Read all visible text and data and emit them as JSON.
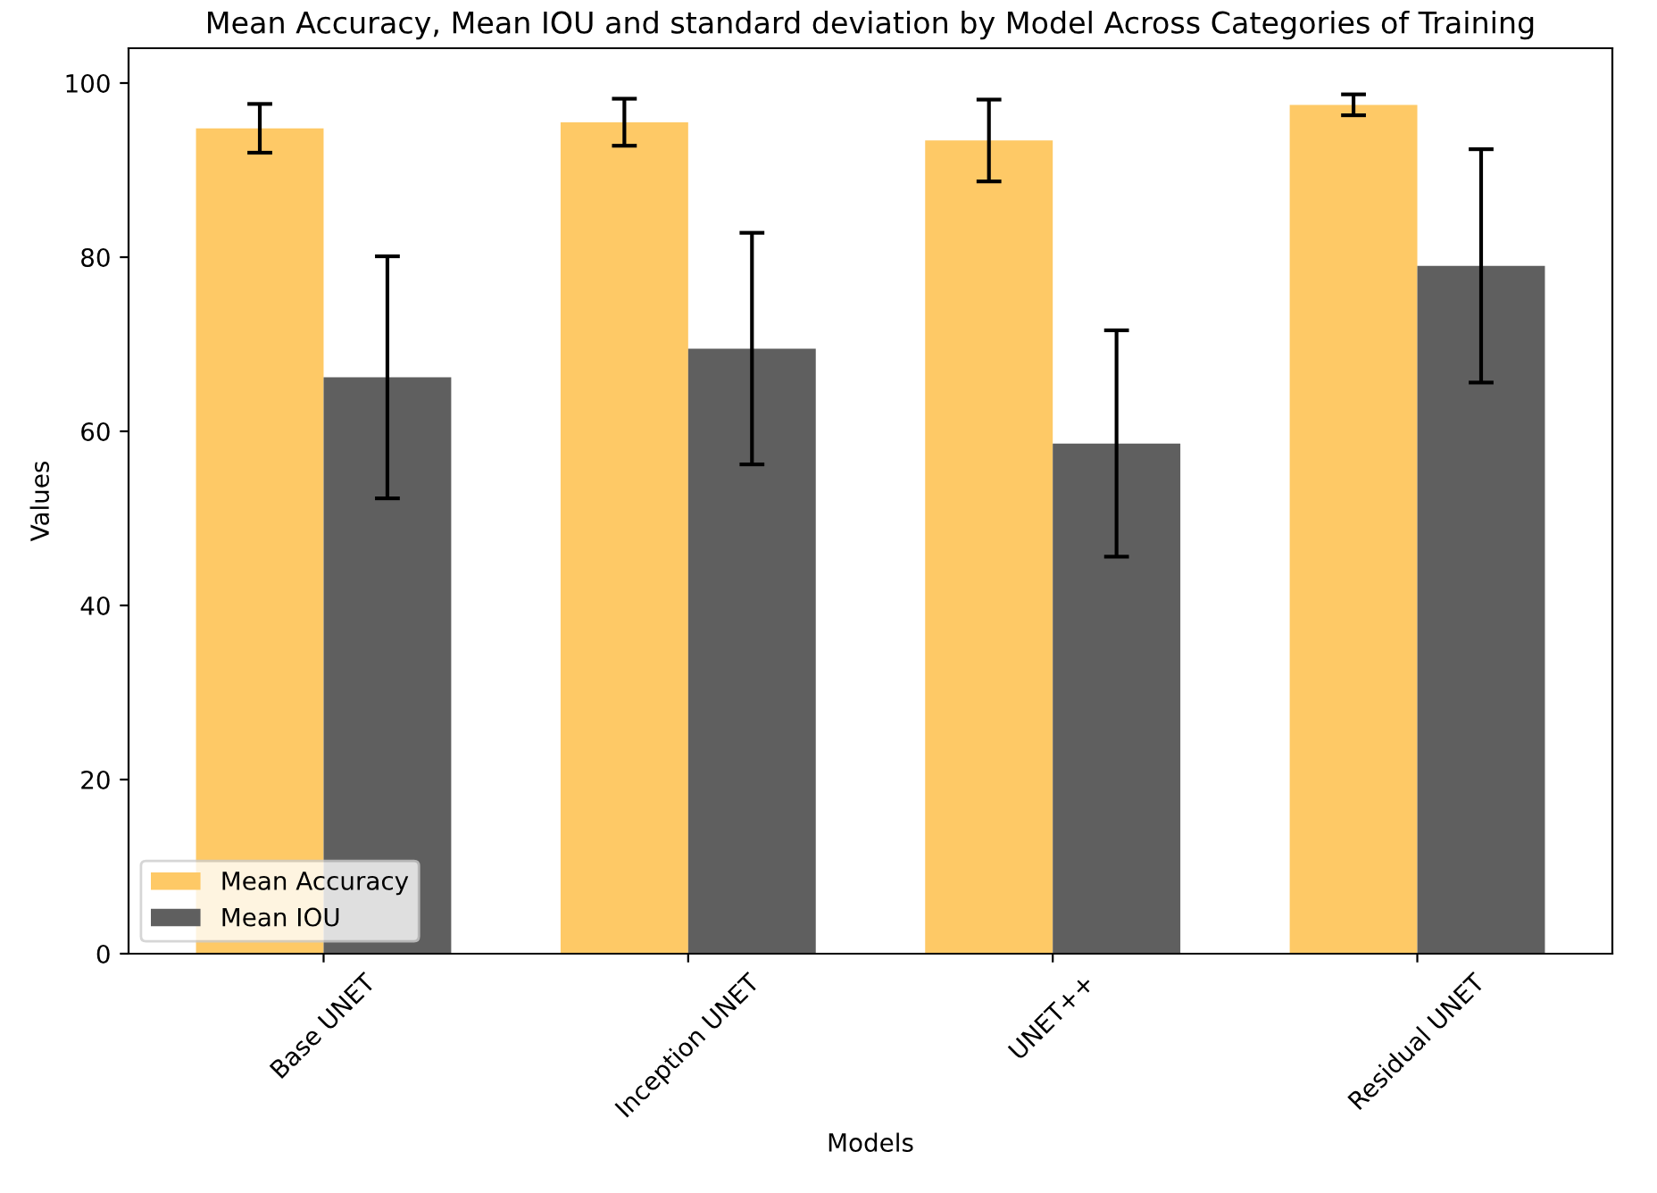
{
  "chart_data": {
    "type": "bar",
    "title": "Mean Accuracy, Mean IOU and standard deviation by Model Across Categories of Training",
    "xlabel": "Models",
    "ylabel": "Values",
    "categories": [
      "Base UNET",
      "Inception UNET",
      "UNET++",
      "Residual UNET"
    ],
    "series": [
      {
        "name": "Mean Accuracy",
        "color": "#fec966",
        "values": [
          94.8,
          95.5,
          93.4,
          97.5
        ],
        "errors": [
          2.8,
          2.7,
          4.7,
          1.2
        ]
      },
      {
        "name": "Mean IOU",
        "color": "#5f5f5f",
        "values": [
          66.2,
          69.5,
          58.6,
          79.0
        ],
        "errors": [
          13.9,
          13.3,
          13.0,
          13.4
        ]
      }
    ],
    "ylim": [
      0,
      104
    ],
    "yticks": [
      0,
      20,
      40,
      60,
      80,
      100
    ],
    "legend": "bottom left",
    "grid": false
  }
}
